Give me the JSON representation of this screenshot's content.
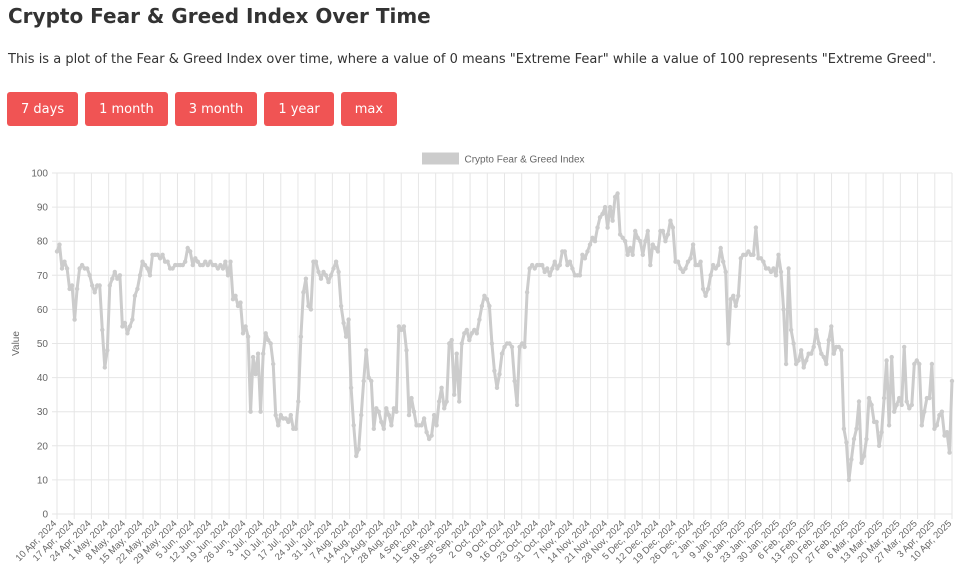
{
  "page": {
    "title": "Crypto Fear & Greed Index Over Time",
    "description": "This is a plot of the Fear & Greed Index over time, where a value of 0 means \"Extreme Fear\" while a value of 100 represents \"Extreme Greed\".",
    "buttons": [
      "7 days",
      "1 month",
      "3 month",
      "1 year",
      "max"
    ]
  },
  "colors": {
    "button_bg": "#f05454",
    "button_text": "#ffffff",
    "series_line": "#cccccc",
    "grid": "#e6e6e6",
    "text": "#333333"
  },
  "chart_data": {
    "type": "line",
    "legend": "top-center",
    "grid": true,
    "ylabel": "Value",
    "xlabel": "",
    "ylim": [
      0,
      100
    ],
    "yticks": [
      0,
      10,
      20,
      30,
      40,
      50,
      60,
      70,
      80,
      90,
      100
    ],
    "xticks": [
      "10 Apr, 2024",
      "17 Apr, 2024",
      "24 Apr, 2024",
      "1 May, 2024",
      "8 May, 2024",
      "15 May, 2024",
      "22 May, 2024",
      "29 May, 2024",
      "5 Jun, 2024",
      "12 Jun, 2024",
      "19 Jun, 2024",
      "26 Jun, 2024",
      "3 Jul, 2024",
      "10 Jul, 2024",
      "17 Jul, 2024",
      "24 Jul, 2024",
      "31 Jul, 2024",
      "7 Aug, 2024",
      "14 Aug, 2024",
      "21 Aug, 2024",
      "28 Aug, 2024",
      "4 Sep, 2024",
      "11 Sep, 2024",
      "18 Sep, 2024",
      "25 Sep, 2024",
      "2 Oct, 2024",
      "9 Oct, 2024",
      "16 Oct, 2024",
      "23 Oct, 2024",
      "31 Oct, 2024",
      "7 Nov, 2024",
      "14 Nov, 2024",
      "21 Nov, 2024",
      "28 Nov, 2024",
      "5 Dec, 2024",
      "12 Dec, 2024",
      "19 Dec, 2024",
      "26 Dec, 2024",
      "2 Jan, 2025",
      "9 Jan, 2025",
      "16 Jan, 2025",
      "23 Jan, 2025",
      "30 Jan, 2025",
      "6 Feb, 2025",
      "13 Feb, 2025",
      "20 Feb, 2025",
      "27 Feb, 2025",
      "6 Mar, 2025",
      "13 Mar, 2025",
      "20 Mar, 2025",
      "27 Mar, 2025",
      "3 Apr, 2025",
      "10 Apr, 2025"
    ],
    "series": [
      {
        "name": "Crypto Fear & Greed Index",
        "start_date": "10 Apr, 2024",
        "values": [
          77,
          79,
          72,
          74,
          72,
          66,
          67,
          57,
          66,
          72,
          73,
          72,
          72,
          70,
          67,
          65,
          67,
          67,
          54,
          43,
          48,
          67,
          69,
          71,
          69,
          70,
          55,
          56,
          53,
          55,
          57,
          64,
          66,
          70,
          74,
          73,
          72,
          70,
          76,
          76,
          76,
          75,
          76,
          74,
          74,
          72,
          72,
          73,
          73,
          73,
          73,
          74,
          78,
          77,
          73,
          75,
          74,
          73,
          73,
          74,
          73,
          74,
          73,
          73,
          72,
          73,
          72,
          74,
          70,
          74,
          63,
          64,
          61,
          62,
          53,
          55,
          52,
          30,
          46,
          41,
          47,
          30,
          47,
          53,
          51,
          50,
          44,
          29,
          26,
          29,
          28,
          28,
          27,
          29,
          25,
          25,
          33,
          52,
          65,
          69,
          61,
          60,
          74,
          74,
          71,
          69,
          71,
          70,
          68,
          70,
          72,
          74,
          71,
          61,
          56,
          52,
          57,
          37,
          26,
          17,
          19,
          29,
          39,
          48,
          40,
          39,
          25,
          31,
          30,
          27,
          25,
          31,
          29,
          26,
          31,
          30,
          55,
          54,
          55,
          48,
          29,
          34,
          30,
          26,
          26,
          26,
          28,
          24,
          22,
          23,
          29,
          26,
          33,
          37,
          31,
          33,
          50,
          51,
          35,
          47,
          33,
          50,
          53,
          54,
          51,
          53,
          54,
          53,
          57,
          61,
          64,
          63,
          61,
          50,
          42,
          37,
          41,
          47,
          49,
          50,
          50,
          49,
          39,
          32,
          49,
          50,
          49,
          65,
          72,
          73,
          72,
          73,
          73,
          73,
          71,
          72,
          70,
          72,
          74,
          72,
          73,
          77,
          77,
          73,
          74,
          72,
          70,
          70,
          70,
          76,
          75,
          77,
          79,
          81,
          80,
          84,
          87,
          88,
          90,
          84,
          90,
          86,
          93,
          94,
          82,
          81,
          80,
          76,
          78,
          76,
          83,
          81,
          80,
          76,
          80,
          83,
          73,
          79,
          78,
          77,
          83,
          83,
          80,
          82,
          86,
          84,
          74,
          74,
          72,
          71,
          72,
          74,
          75,
          79,
          73,
          73,
          74,
          66,
          64,
          66,
          70,
          73,
          72,
          73,
          78,
          74,
          71,
          50,
          63,
          64,
          61,
          64,
          75,
          76,
          76,
          77,
          76,
          76,
          84,
          75,
          75,
          74,
          72,
          72,
          71,
          72,
          70,
          76,
          71,
          60,
          44,
          72,
          54,
          50,
          44,
          45,
          48,
          43,
          45,
          47,
          47,
          49,
          54,
          50,
          47,
          46,
          44,
          51,
          55,
          47,
          49,
          49,
          48,
          25,
          21,
          10,
          16,
          22,
          25,
          33,
          15,
          17,
          22,
          34,
          32,
          27,
          27,
          20,
          24,
          34,
          45,
          26,
          46,
          30,
          32,
          34,
          32,
          49,
          33,
          31,
          32,
          44,
          45,
          44,
          26,
          30,
          34,
          34,
          44,
          25,
          26,
          29,
          30,
          23,
          24,
          18,
          39
        ]
      }
    ]
  }
}
